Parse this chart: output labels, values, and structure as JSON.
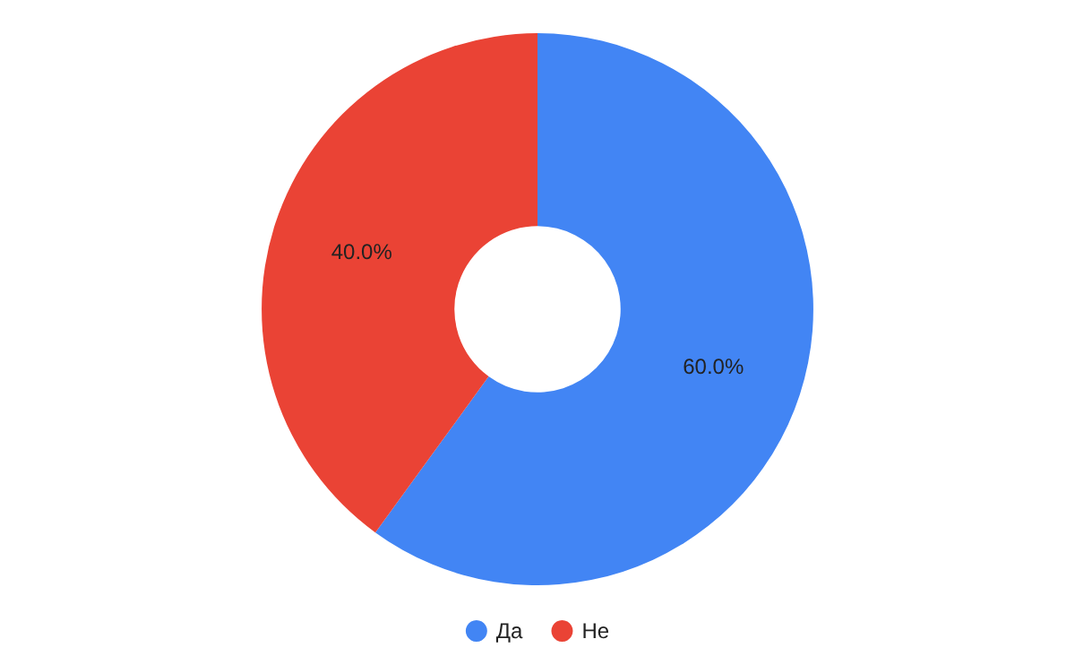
{
  "chart_data": {
    "type": "donut",
    "categories": [
      "Да",
      "Не"
    ],
    "values": [
      60,
      40
    ],
    "colors": [
      "#4285f4",
      "#ea4335"
    ],
    "value_labels": [
      "60.0%",
      "40.0%"
    ],
    "legend": "bottom"
  }
}
